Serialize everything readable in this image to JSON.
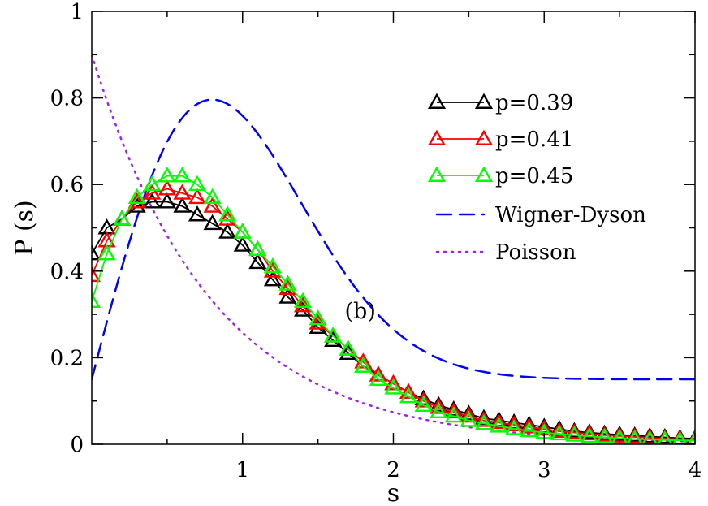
{
  "chart_data": {
    "type": "line",
    "title": "",
    "xlabel": "s",
    "ylabel": "P (s)",
    "xlim": [
      0,
      4
    ],
    "ylim": [
      0,
      1
    ],
    "x_ticks": [
      1,
      2,
      3,
      4
    ],
    "x_tick_labels": [
      "1",
      "2",
      "3",
      "4"
    ],
    "y_ticks": [
      0,
      0.2,
      0.4,
      0.6,
      0.8,
      1
    ],
    "y_tick_labels": [
      "0",
      "0.2",
      "0.4",
      "0.6",
      "0.8",
      "1"
    ],
    "grid": false,
    "legend_position": "top-right",
    "annotation": "(b)",
    "series": [
      {
        "name": "p=0.39",
        "color": "#000000",
        "marker": "triangle-open",
        "x": [
          0.0,
          0.1,
          0.2,
          0.3,
          0.4,
          0.5,
          0.6,
          0.7,
          0.8,
          0.9,
          1.0,
          1.1,
          1.2,
          1.3,
          1.4,
          1.5,
          1.6,
          1.7,
          1.8,
          1.9,
          2.0,
          2.1,
          2.2,
          2.3,
          2.4,
          2.5,
          2.6,
          2.7,
          2.8,
          2.9,
          3.0,
          3.1,
          3.2,
          3.3,
          3.4,
          3.5,
          3.6,
          3.7,
          3.8,
          3.9,
          4.0
        ],
        "y": [
          0.44,
          0.5,
          0.52,
          0.55,
          0.56,
          0.56,
          0.55,
          0.53,
          0.51,
          0.49,
          0.46,
          0.42,
          0.38,
          0.34,
          0.31,
          0.27,
          0.24,
          0.21,
          0.18,
          0.16,
          0.14,
          0.12,
          0.105,
          0.09,
          0.08,
          0.07,
          0.06,
          0.055,
          0.05,
          0.045,
          0.04,
          0.035,
          0.03,
          0.027,
          0.024,
          0.022,
          0.02,
          0.018,
          0.016,
          0.014,
          0.013
        ]
      },
      {
        "name": "p=0.41",
        "color": "#ff0000",
        "marker": "triangle-open",
        "x": [
          0.0,
          0.1,
          0.2,
          0.3,
          0.4,
          0.5,
          0.6,
          0.7,
          0.8,
          0.9,
          1.0,
          1.1,
          1.2,
          1.3,
          1.4,
          1.5,
          1.6,
          1.7,
          1.8,
          1.9,
          2.0,
          2.1,
          2.2,
          2.3,
          2.4,
          2.5,
          2.6,
          2.7,
          2.8,
          2.9,
          3.0,
          3.1,
          3.2,
          3.3,
          3.4,
          3.5,
          3.6,
          3.7,
          3.8,
          3.9,
          4.0
        ],
        "y": [
          0.39,
          0.47,
          0.52,
          0.56,
          0.58,
          0.59,
          0.58,
          0.57,
          0.55,
          0.52,
          0.49,
          0.45,
          0.4,
          0.36,
          0.32,
          0.28,
          0.25,
          0.22,
          0.19,
          0.16,
          0.14,
          0.12,
          0.1,
          0.085,
          0.075,
          0.065,
          0.055,
          0.05,
          0.045,
          0.04,
          0.035,
          0.03,
          0.027,
          0.024,
          0.021,
          0.019,
          0.017,
          0.015,
          0.013,
          0.012,
          0.011
        ]
      },
      {
        "name": "p=0.45",
        "color": "#00ff00",
        "marker": "triangle-open",
        "x": [
          0.0,
          0.1,
          0.2,
          0.3,
          0.4,
          0.5,
          0.6,
          0.7,
          0.8,
          0.9,
          1.0,
          1.1,
          1.2,
          1.3,
          1.4,
          1.5,
          1.6,
          1.7,
          1.8,
          1.9,
          2.0,
          2.1,
          2.2,
          2.3,
          2.4,
          2.5,
          2.6,
          2.7,
          2.8,
          2.9,
          3.0,
          3.1,
          3.2,
          3.3,
          3.4,
          3.5,
          3.6,
          3.7,
          3.8,
          3.9,
          4.0
        ],
        "y": [
          0.33,
          0.44,
          0.52,
          0.57,
          0.6,
          0.62,
          0.62,
          0.6,
          0.57,
          0.53,
          0.49,
          0.45,
          0.41,
          0.37,
          0.33,
          0.29,
          0.25,
          0.22,
          0.18,
          0.15,
          0.13,
          0.11,
          0.09,
          0.075,
          0.065,
          0.055,
          0.048,
          0.042,
          0.036,
          0.031,
          0.027,
          0.024,
          0.021,
          0.018,
          0.016,
          0.014,
          0.012,
          0.011,
          0.01,
          0.009,
          0.008
        ]
      },
      {
        "name": "Wigner-Dyson",
        "color": "#0000ff",
        "style": "dashed",
        "function": "wigner_dyson"
      },
      {
        "name": "Poisson",
        "color": "#a020f0",
        "style": "dotted",
        "function": "poisson"
      }
    ]
  }
}
